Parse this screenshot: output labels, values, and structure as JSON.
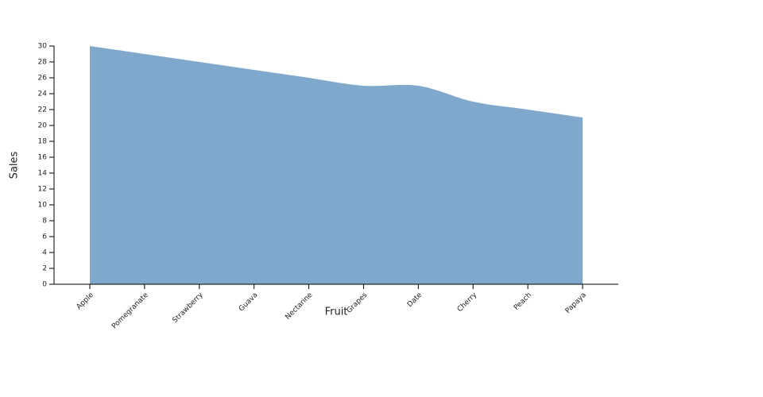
{
  "chart_data": {
    "type": "area",
    "x_label": "Fruit",
    "y_label": "Sales",
    "categories": [
      "Apple",
      "Pomegranate",
      "Strawberry",
      "Guava",
      "Nectarine",
      "Grapes",
      "Date",
      "Cherry",
      "Peach",
      "Papaya"
    ],
    "values": [
      30,
      29,
      28,
      27,
      26,
      25,
      25,
      23,
      22,
      21
    ],
    "color": "#7fa8cc",
    "ylim": [
      0,
      30
    ],
    "yticks": [
      0,
      2,
      4,
      6,
      8,
      10,
      12,
      14,
      16,
      18,
      20,
      22,
      24,
      26,
      28,
      30
    ],
    "grid": false
  }
}
